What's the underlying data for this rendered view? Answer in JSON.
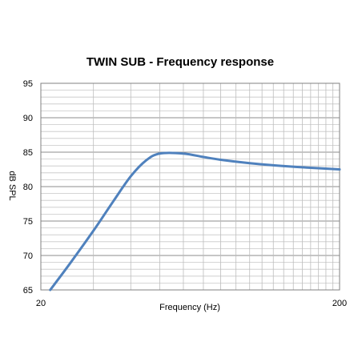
{
  "chart_data": {
    "type": "line",
    "title": "TWIN SUB - Frequency response",
    "xlabel": "Frequency (Hz)",
    "ylabel": "dB SPL",
    "x_scale": "log",
    "xlim": [
      20,
      200
    ],
    "ylim": [
      65,
      95
    ],
    "x_ticks": [
      20,
      200
    ],
    "y_ticks": [
      65,
      70,
      75,
      80,
      85,
      90,
      95
    ],
    "grid": true,
    "line_color": "#4f81bd",
    "series": [
      {
        "x": [
          21.5,
          25,
          30,
          35,
          40,
          45,
          50,
          60,
          70,
          80,
          100,
          120,
          150,
          200
        ],
        "y": [
          65,
          68.8,
          73.6,
          77.9,
          81.5,
          83.8,
          84.8,
          84.8,
          84.3,
          83.9,
          83.4,
          83.1,
          82.8,
          82.5
        ]
      }
    ]
  }
}
